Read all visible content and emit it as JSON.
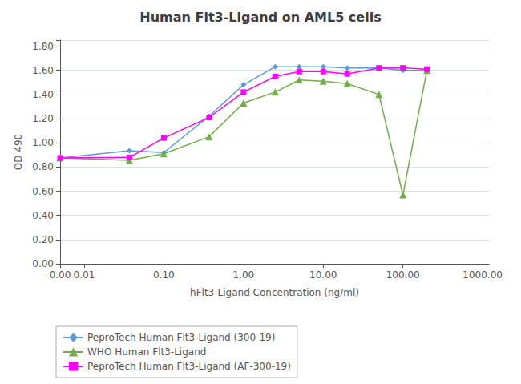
{
  "chart_data": {
    "type": "line",
    "title": "Human Flt3-Ligand on AML5 cells",
    "xlabel": "hFlt3-Ligand Concentration (ng/ml)",
    "ylabel": "OD 490",
    "x": [
      0.005,
      0.037,
      0.1,
      0.37,
      1.0,
      2.5,
      5.0,
      10.0,
      20.0,
      50.0,
      100.0,
      200.0
    ],
    "series": [
      {
        "name": "PeproTech Human Flt3-Ligand (300-19)",
        "color": "#5B9BD5",
        "marker": "diamond",
        "values": [
          0.875,
          0.935,
          0.92,
          1.22,
          1.48,
          1.63,
          1.63,
          1.63,
          1.62,
          1.62,
          1.6,
          1.6
        ]
      },
      {
        "name": "WHO Human Flt3-Ligand",
        "color": "#70AD47",
        "marker": "triangle",
        "values": [
          0.875,
          0.855,
          0.91,
          1.05,
          1.33,
          1.42,
          1.52,
          1.51,
          1.49,
          1.4,
          0.57,
          1.6
        ]
      },
      {
        "name": "PeproTech Human Flt3-Ligand (AF-300-19)",
        "color": "#FF00FF",
        "marker": "square",
        "values": [
          0.875,
          0.88,
          1.04,
          1.21,
          1.42,
          1.55,
          1.59,
          1.59,
          1.57,
          1.62,
          1.62,
          1.61
        ]
      }
    ],
    "log": "x",
    "xlim": [
      0.005,
      1200.0
    ],
    "xticks": [
      {
        "value": 0.005,
        "label": "0.00"
      },
      0.01,
      {
        "value": 0.1,
        "label": "0.10"
      },
      {
        "value": 1.0,
        "label": "1.00"
      },
      {
        "value": 10.0,
        "label": "10.00"
      },
      {
        "value": 100.0,
        "label": "100.00"
      },
      {
        "value": 1000.0,
        "label": "1000.00"
      }
    ],
    "ylim": [
      0.0,
      1.85
    ],
    "yticks": [
      {
        "value": 0.0,
        "label": "0.00"
      },
      {
        "value": 0.2,
        "label": "0.20"
      },
      {
        "value": 0.4,
        "label": "0.40"
      },
      {
        "value": 0.6,
        "label": "0.60"
      },
      {
        "value": 0.8,
        "label": "0.80"
      },
      {
        "value": 1.0,
        "label": "1.00"
      },
      {
        "value": 1.2,
        "label": "1.20"
      },
      {
        "value": 1.4,
        "label": "1.40"
      },
      {
        "value": 1.6,
        "label": "1.60"
      },
      {
        "value": 1.8,
        "label": "1.80"
      }
    ],
    "grid": true,
    "legend": "bottom"
  }
}
